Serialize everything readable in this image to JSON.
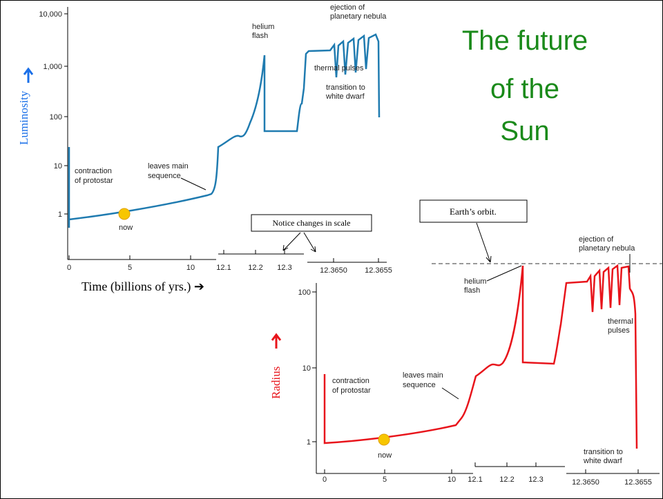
{
  "title": {
    "lines": [
      "The future",
      "of the",
      "Sun"
    ]
  },
  "top_chart": {
    "y_label": "Luminosity",
    "y_ticks": [
      "10,000",
      "1,000",
      "100",
      "10",
      "1"
    ],
    "x_ticks": [
      "0",
      "5",
      "10",
      "12.1",
      "12.2",
      "12.3",
      "12.3650",
      "12.3655"
    ],
    "x_label": "Time (billions of yrs.) ➔",
    "annotations": {
      "contraction": [
        "contraction",
        "of protostar"
      ],
      "main_sequence": [
        "leaves main",
        "sequence"
      ],
      "now": [
        "now"
      ],
      "helium": [
        "helium",
        "flash"
      ],
      "ejection": [
        "ejection of",
        "planetary nebula"
      ],
      "pulses": [
        "thermal pulses"
      ],
      "white_dwarf": [
        "transition to",
        "white dwarf"
      ]
    }
  },
  "bottom_chart": {
    "y_label": "Radius",
    "y_ticks": [
      "100",
      "10",
      "1"
    ],
    "x_ticks": [
      "0",
      "5",
      "10",
      "12.1",
      "12.2",
      "12.3",
      "12.3650",
      "12.3655"
    ],
    "annotations": {
      "contraction": [
        "contraction",
        "of protostar"
      ],
      "main_sequence": [
        "leaves main",
        "sequence"
      ],
      "now": [
        "now"
      ],
      "helium": [
        "helium",
        "flash"
      ],
      "ejection": [
        "ejection of",
        "planetary nebula"
      ],
      "pulses": [
        "thermal",
        "pulses"
      ],
      "white_dwarf": [
        "transition to",
        "white dwarf"
      ]
    }
  },
  "callouts": {
    "scale": "Notice changes in scale",
    "orbit": "Earth’s orbit."
  }
}
